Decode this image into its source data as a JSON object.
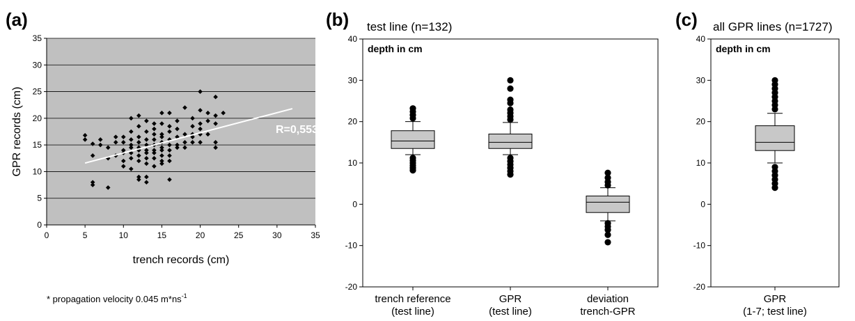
{
  "chart_data": [
    {
      "panel": "(a)",
      "type": "scatter",
      "xlabel": "trench records (cm)",
      "ylabel": "GPR records (cm)",
      "xlim": [
        0,
        35
      ],
      "ylim": [
        0,
        35
      ],
      "xticks": [
        0,
        5,
        10,
        15,
        20,
        25,
        30,
        35
      ],
      "yticks": [
        0,
        5,
        10,
        15,
        20,
        25,
        30,
        35
      ],
      "grid": "horizontal",
      "plot_background": "#c0c0c0",
      "marker": "diamond",
      "points": [
        [
          5,
          16.8
        ],
        [
          5,
          16
        ],
        [
          6,
          15.2
        ],
        [
          6,
          13
        ],
        [
          6,
          8
        ],
        [
          6,
          7.5
        ],
        [
          7,
          16
        ],
        [
          7,
          15
        ],
        [
          8,
          14.5
        ],
        [
          8,
          7
        ],
        [
          8,
          12.5
        ],
        [
          9,
          15.5
        ],
        [
          9,
          16.5
        ],
        [
          9,
          13
        ],
        [
          10,
          16.5
        ],
        [
          10,
          15.5
        ],
        [
          10,
          14
        ],
        [
          10,
          13.5
        ],
        [
          10,
          12
        ],
        [
          10,
          11
        ],
        [
          11,
          20
        ],
        [
          11,
          17.5
        ],
        [
          11,
          16
        ],
        [
          11,
          15
        ],
        [
          11,
          14.5
        ],
        [
          11,
          13.5
        ],
        [
          11,
          12.5
        ],
        [
          11,
          10.5
        ],
        [
          12,
          20.5
        ],
        [
          12,
          18.5
        ],
        [
          12,
          16.5
        ],
        [
          12,
          15.5
        ],
        [
          12,
          14.5
        ],
        [
          12,
          14
        ],
        [
          12,
          13
        ],
        [
          12,
          12
        ],
        [
          12,
          9
        ],
        [
          12,
          8.5
        ],
        [
          13,
          19.5
        ],
        [
          13,
          17.5
        ],
        [
          13,
          16
        ],
        [
          13,
          15
        ],
        [
          13,
          14
        ],
        [
          13,
          13.5
        ],
        [
          13,
          12.5
        ],
        [
          13,
          11.5
        ],
        [
          13,
          9
        ],
        [
          13,
          8
        ],
        [
          14,
          19
        ],
        [
          14,
          18
        ],
        [
          14,
          17
        ],
        [
          14,
          16
        ],
        [
          14,
          15
        ],
        [
          14,
          14
        ],
        [
          14,
          13.5
        ],
        [
          14,
          12.5
        ],
        [
          14,
          11
        ],
        [
          15,
          21
        ],
        [
          15,
          19
        ],
        [
          15,
          17
        ],
        [
          15,
          16.5
        ],
        [
          15,
          15.5
        ],
        [
          15,
          14.5
        ],
        [
          15,
          14
        ],
        [
          15,
          13
        ],
        [
          15,
          12
        ],
        [
          15,
          11.5
        ],
        [
          16,
          21
        ],
        [
          16,
          18.5
        ],
        [
          16,
          17.5
        ],
        [
          16,
          16
        ],
        [
          16,
          15
        ],
        [
          16,
          14
        ],
        [
          16,
          13
        ],
        [
          16,
          12
        ],
        [
          16,
          8.5
        ],
        [
          17,
          19.5
        ],
        [
          17,
          18
        ],
        [
          17,
          16.5
        ],
        [
          17,
          15
        ],
        [
          17,
          14.5
        ],
        [
          18,
          22
        ],
        [
          18,
          17
        ],
        [
          18,
          15.5
        ],
        [
          18,
          14.5
        ],
        [
          19,
          20
        ],
        [
          19,
          18.5
        ],
        [
          19,
          17
        ],
        [
          19,
          16.5
        ],
        [
          19,
          15.5
        ],
        [
          20,
          25
        ],
        [
          20,
          21.5
        ],
        [
          20,
          19
        ],
        [
          20,
          18
        ],
        [
          20,
          17
        ],
        [
          20,
          15.5
        ],
        [
          21,
          21
        ],
        [
          21,
          19.5
        ],
        [
          21,
          17
        ],
        [
          22,
          24
        ],
        [
          22,
          20.5
        ],
        [
          22,
          19
        ],
        [
          22,
          15.5
        ],
        [
          22,
          14.5
        ],
        [
          23,
          21
        ]
      ],
      "trendline": {
        "x": [
          5,
          32
        ],
        "y": [
          11.6,
          21.8
        ],
        "color": "#ffffff"
      },
      "annotation": "R=0,553",
      "footnote": "* propagation velocity 0.045 m*ns",
      "footnote_superscript": "-1"
    },
    {
      "panel": "(b)",
      "type": "boxplot",
      "title": "test line (n=132)",
      "inner_label": "depth in cm",
      "ylim": [
        -20,
        40
      ],
      "yticks": [
        -20,
        -10,
        0,
        10,
        20,
        30,
        40
      ],
      "box_color": "#c8c8c8",
      "boxes": [
        {
          "label_line1": "trench reference",
          "label_line2": "(test line)",
          "q1": 13.5,
          "median": 15.3,
          "q3": 17.8,
          "whisker_low": 12,
          "whisker_high": 20,
          "outliers": [
            8.2,
            8.8,
            9.4,
            10,
            10.6,
            11.2,
            20.8,
            21.6,
            22.4,
            23.2
          ]
        },
        {
          "label_line1": "GPR",
          "label_line2": "(test line)",
          "q1": 13.5,
          "median": 15,
          "q3": 17,
          "whisker_low": 12,
          "whisker_high": 19.8,
          "outliers": [
            7.2,
            8,
            8.8,
            9.6,
            10.4,
            11.2,
            20.5,
            21.3,
            22.1,
            22.9,
            24.5,
            25.3,
            28,
            30
          ]
        },
        {
          "label_line1": "deviation",
          "label_line2": "trench-GPR",
          "q1": -2,
          "median": 0.5,
          "q3": 2,
          "whisker_low": -4,
          "whisker_high": 4,
          "outliers": [
            -9.2,
            -7.4,
            -6.2,
            -5.4,
            -4.6,
            4.6,
            5.4,
            6.4,
            7.6
          ]
        }
      ]
    },
    {
      "panel": "(c)",
      "type": "boxplot",
      "title": "all GPR lines (n=1727)",
      "inner_label": "depth in cm",
      "ylim": [
        -20,
        40
      ],
      "yticks": [
        -20,
        -10,
        0,
        10,
        20,
        30,
        40
      ],
      "box_color": "#c8c8c8",
      "boxes": [
        {
          "label_line1": "GPR",
          "label_line2": "(1-7; test line)",
          "q1": 13,
          "median": 15,
          "q3": 19,
          "whisker_low": 10,
          "whisker_high": 22,
          "outliers": [
            4,
            5,
            6,
            7,
            8,
            9,
            23,
            24,
            25,
            26,
            27,
            28,
            29,
            30
          ]
        }
      ]
    }
  ]
}
